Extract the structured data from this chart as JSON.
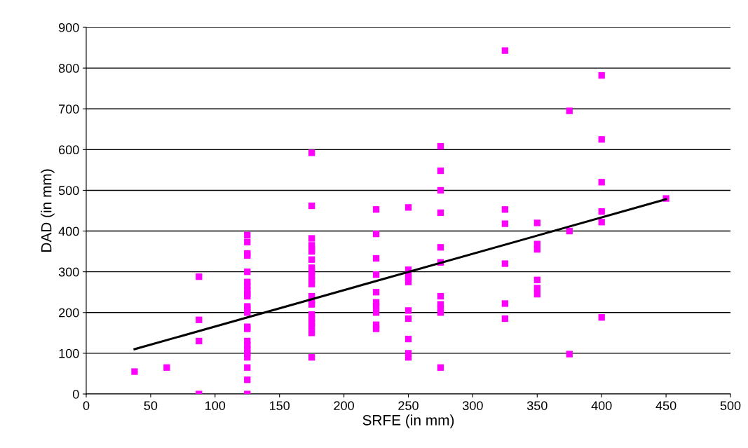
{
  "chart_data": {
    "type": "scatter",
    "xlabel": "SRFE (in mm)",
    "ylabel": "DAD (in mm)",
    "xlim": [
      0,
      500
    ],
    "xticks": [
      0,
      50,
      100,
      150,
      200,
      250,
      300,
      350,
      400,
      450,
      500
    ],
    "ylim": [
      0,
      900
    ],
    "yticks": [
      0,
      100,
      200,
      300,
      400,
      500,
      600,
      700,
      800,
      900
    ],
    "grid": "y",
    "legend": false,
    "marker": "square",
    "series": [
      {
        "color": "#ff00ff",
        "x": [
          37.5,
          62.5,
          87.5,
          87.5,
          87.5,
          87.5,
          125,
          125,
          125,
          125,
          125,
          125,
          125,
          125,
          125,
          125,
          125,
          125,
          125,
          125,
          125,
          125,
          125,
          125,
          125,
          125,
          125,
          125,
          125,
          175,
          175,
          175,
          175,
          175,
          175,
          175,
          175,
          175,
          175,
          175,
          175,
          175,
          175,
          175,
          175,
          175,
          175,
          175,
          175,
          175,
          225,
          225,
          225,
          225,
          225,
          225,
          225,
          225,
          225,
          225,
          250,
          250,
          250,
          250,
          250,
          250,
          250,
          250,
          250,
          250,
          275,
          275,
          275,
          275,
          275,
          275,
          275,
          275,
          275,
          275,
          275,
          325,
          325,
          325,
          325,
          325,
          325,
          350,
          350,
          350,
          350,
          350,
          350,
          375,
          375,
          375,
          400,
          400,
          400,
          400,
          400,
          400,
          450
        ],
        "values": [
          55,
          65,
          288,
          182,
          130,
          0,
          390,
          373,
          345,
          340,
          300,
          275,
          265,
          255,
          245,
          240,
          215,
          210,
          200,
          165,
          160,
          130,
          120,
          110,
          100,
          90,
          65,
          35,
          0,
          592,
          462,
          382,
          365,
          355,
          350,
          330,
          310,
          300,
          290,
          280,
          270,
          240,
          230,
          220,
          195,
          185,
          175,
          165,
          150,
          90,
          453,
          393,
          333,
          293,
          250,
          225,
          215,
          200,
          170,
          160,
          458,
          305,
          295,
          285,
          275,
          205,
          185,
          135,
          100,
          90,
          608,
          548,
          500,
          445,
          360,
          323,
          240,
          220,
          210,
          200,
          65,
          843,
          453,
          418,
          320,
          222,
          185,
          420,
          368,
          355,
          280,
          260,
          245,
          695,
          400,
          98,
          782,
          625,
          520,
          448,
          422,
          188,
          480
        ]
      },
      {
        "type": "line",
        "color": "#000000",
        "marker": "none",
        "x": [
          37.5,
          450
        ],
        "values": [
          110,
          478
        ]
      }
    ]
  }
}
